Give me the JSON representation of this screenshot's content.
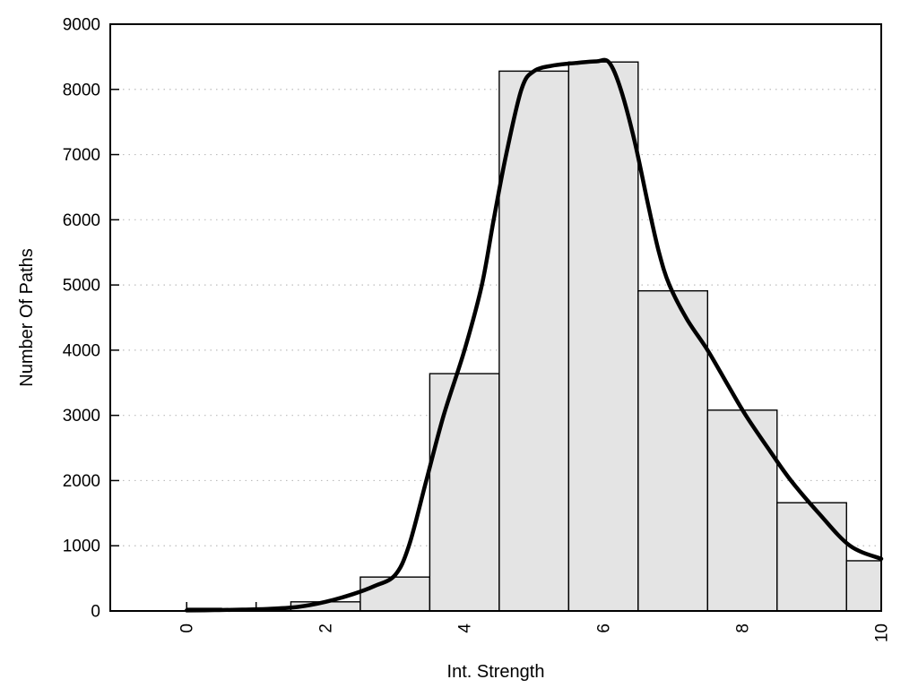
{
  "chart_data": {
    "type": "bar",
    "subtype": "histogram-with-density-curve",
    "title": "",
    "xlabel": "Int. Strength",
    "ylabel": "Number Of Paths",
    "x_range": [
      -1.1,
      10
    ],
    "y_range": [
      0,
      9000
    ],
    "x_major_ticks": [
      0,
      2,
      4,
      6,
      8,
      10
    ],
    "x_major_tick_labels": [
      "0",
      "2",
      "4",
      "6",
      "8",
      "10"
    ],
    "x_minor_ticks": [
      1,
      3,
      5,
      7,
      9
    ],
    "y_ticks": [
      0,
      1000,
      2000,
      3000,
      4000,
      5000,
      6000,
      7000,
      8000,
      9000
    ],
    "y_tick_labels": [
      "0",
      "1000",
      "2000",
      "3000",
      "4000",
      "5000",
      "6000",
      "7000",
      "8000",
      "9000"
    ],
    "grid": {
      "horizontal": true,
      "vertical": false,
      "style": "dotted",
      "at": [
        1000,
        2000,
        3000,
        4000,
        5000,
        6000,
        7000,
        8000
      ]
    },
    "legend": null,
    "bars": [
      {
        "x_left": 0.0,
        "x_right": 0.5,
        "center": 0,
        "value": 40
      },
      {
        "x_left": 0.5,
        "x_right": 1.5,
        "center": 1,
        "value": 30
      },
      {
        "x_left": 1.5,
        "x_right": 2.5,
        "center": 2,
        "value": 140
      },
      {
        "x_left": 2.5,
        "x_right": 3.5,
        "center": 3,
        "value": 520
      },
      {
        "x_left": 3.5,
        "x_right": 4.5,
        "center": 4,
        "value": 3640
      },
      {
        "x_left": 4.5,
        "x_right": 5.5,
        "center": 5,
        "value": 8280
      },
      {
        "x_left": 5.5,
        "x_right": 6.5,
        "center": 6,
        "value": 8420
      },
      {
        "x_left": 6.5,
        "x_right": 7.5,
        "center": 7,
        "value": 4910
      },
      {
        "x_left": 7.5,
        "x_right": 8.5,
        "center": 8,
        "value": 3080
      },
      {
        "x_left": 8.5,
        "x_right": 9.5,
        "center": 9,
        "value": 1660
      },
      {
        "x_left": 9.5,
        "x_right": 10.0,
        "center": 10,
        "value": 770
      }
    ],
    "curve": {
      "name": "density-fit",
      "points": [
        [
          0.0,
          8
        ],
        [
          0.4,
          13
        ],
        [
          0.8,
          20
        ],
        [
          1.2,
          33
        ],
        [
          1.6,
          62
        ],
        [
          2.0,
          140
        ],
        [
          2.4,
          260
        ],
        [
          2.7,
          380
        ],
        [
          3.0,
          550
        ],
        [
          3.2,
          1000
        ],
        [
          3.45,
          2000
        ],
        [
          3.7,
          3000
        ],
        [
          4.0,
          4000
        ],
        [
          4.25,
          5000
        ],
        [
          4.42,
          6000
        ],
        [
          4.6,
          7000
        ],
        [
          4.82,
          8000
        ],
        [
          5.0,
          8280
        ],
        [
          5.3,
          8370
        ],
        [
          5.6,
          8405
        ],
        [
          5.9,
          8430
        ],
        [
          6.08,
          8415
        ],
        [
          6.25,
          8000
        ],
        [
          6.45,
          7200
        ],
        [
          6.65,
          6200
        ],
        [
          6.8,
          5500
        ],
        [
          6.95,
          5000
        ],
        [
          7.2,
          4480
        ],
        [
          7.5,
          4000
        ],
        [
          7.8,
          3450
        ],
        [
          8.05,
          3000
        ],
        [
          8.4,
          2450
        ],
        [
          8.7,
          2000
        ],
        [
          9.1,
          1500
        ],
        [
          9.55,
          1000
        ],
        [
          10.0,
          800
        ]
      ]
    },
    "colors": {
      "bar_fill": "#e4e4e4",
      "bar_border": "#000000",
      "curve": "#000000",
      "grid": "#bdbdbd",
      "axis": "#000000",
      "background": "#ffffff"
    }
  }
}
